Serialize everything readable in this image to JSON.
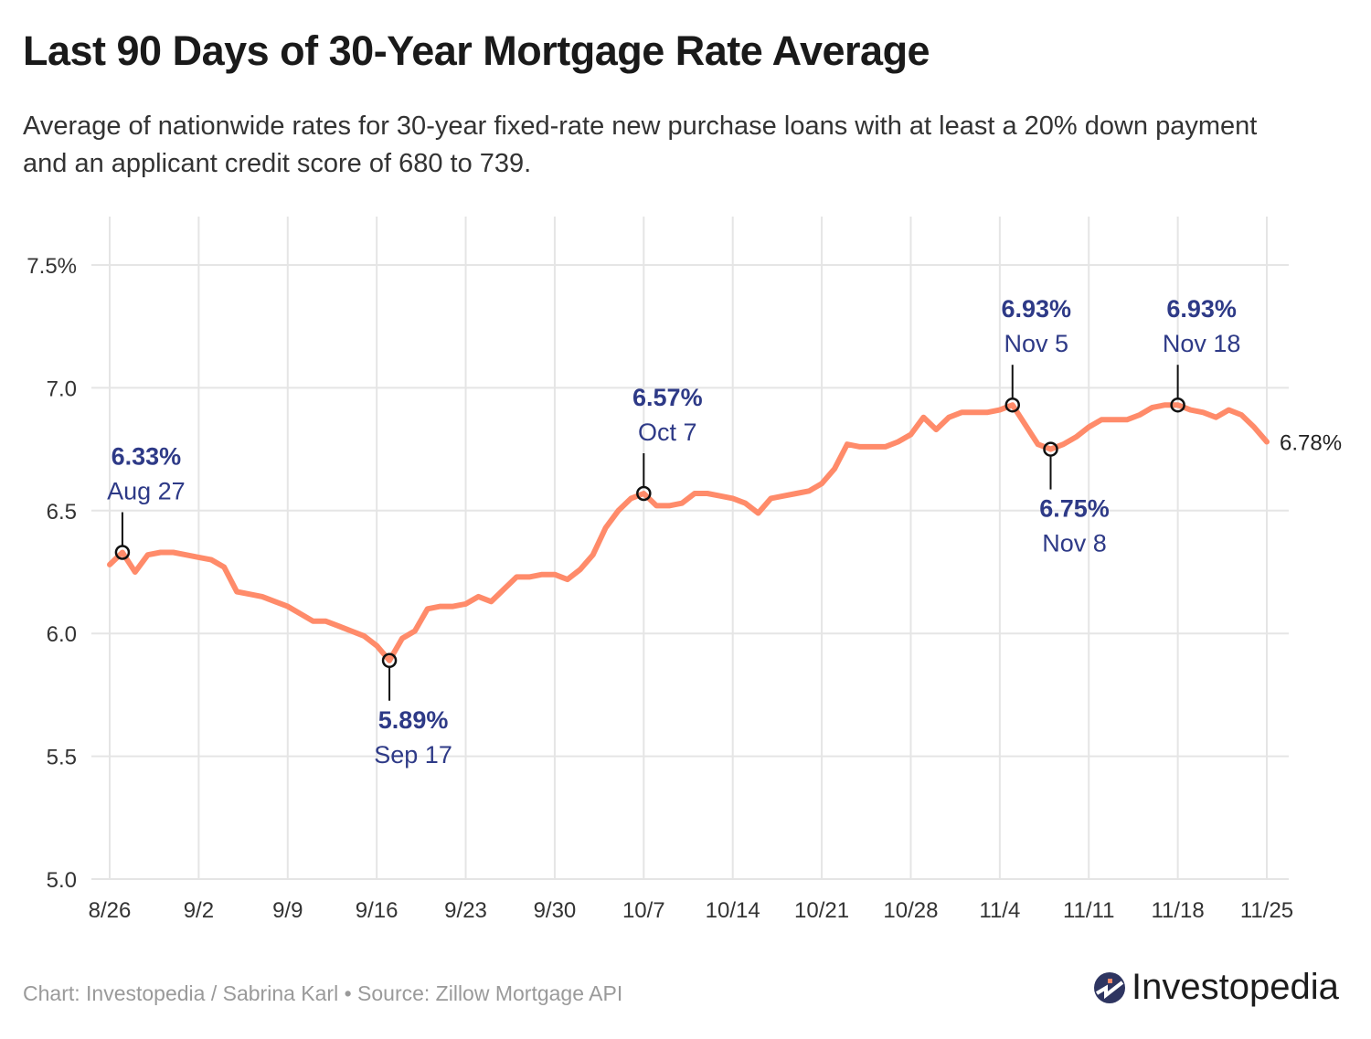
{
  "title": "Last 90 Days of 30-Year Mortgage Rate Average",
  "subtitle": "Average of nationwide rates for 30-year fixed-rate new purchase loans with at least a 20% down payment and an applicant credit score of 680 to 739.",
  "footer": "Chart: Investopedia / Sabrina Karl • Source: Zillow Mortgage API",
  "logo": {
    "text": "Investopedia"
  },
  "colors": {
    "line": "#FF8B6A",
    "annotation": "#2E3A87",
    "grid": "#E5E5E5",
    "logo_circle": "#2E3561",
    "logo_dot": "#FF8B6A"
  },
  "chart_data": {
    "type": "line",
    "title": "Last 90 Days of 30-Year Mortgage Rate Average",
    "xlabel": "",
    "ylabel": "",
    "ylim": [
      5.0,
      7.5
    ],
    "yticks": [
      5.0,
      5.5,
      6.0,
      6.5,
      7.0,
      7.5
    ],
    "ytick_labels": [
      "5.0",
      "5.5",
      "6.0",
      "6.5",
      "7.0",
      "7.5%"
    ],
    "xticks": [
      "8/26",
      "9/2",
      "9/9",
      "9/16",
      "9/23",
      "9/30",
      "10/7",
      "10/14",
      "10/21",
      "10/28",
      "11/4",
      "11/11",
      "11/18",
      "11/25"
    ],
    "grid": true,
    "x": [
      "8/26",
      "8/27",
      "8/28",
      "8/29",
      "8/30",
      "8/31",
      "9/1",
      "9/2",
      "9/3",
      "9/4",
      "9/5",
      "9/6",
      "9/7",
      "9/8",
      "9/9",
      "9/10",
      "9/11",
      "9/12",
      "9/13",
      "9/14",
      "9/15",
      "9/16",
      "9/17",
      "9/18",
      "9/19",
      "9/20",
      "9/21",
      "9/22",
      "9/23",
      "9/24",
      "9/25",
      "9/26",
      "9/27",
      "9/28",
      "9/29",
      "9/30",
      "10/1",
      "10/2",
      "10/3",
      "10/4",
      "10/5",
      "10/6",
      "10/7",
      "10/8",
      "10/9",
      "10/10",
      "10/11",
      "10/12",
      "10/13",
      "10/14",
      "10/15",
      "10/16",
      "10/17",
      "10/18",
      "10/19",
      "10/20",
      "10/21",
      "10/22",
      "10/23",
      "10/24",
      "10/25",
      "10/26",
      "10/27",
      "10/28",
      "10/29",
      "10/30",
      "10/31",
      "11/1",
      "11/2",
      "11/3",
      "11/4",
      "11/5",
      "11/6",
      "11/7",
      "11/8",
      "11/9",
      "11/10",
      "11/11",
      "11/12",
      "11/13",
      "11/14",
      "11/15",
      "11/16",
      "11/17",
      "11/18",
      "11/19",
      "11/20",
      "11/21",
      "11/22",
      "11/23",
      "11/24",
      "11/25"
    ],
    "values": [
      6.28,
      6.33,
      6.25,
      6.32,
      6.33,
      6.33,
      6.32,
      6.31,
      6.3,
      6.27,
      6.17,
      6.16,
      6.15,
      6.13,
      6.11,
      6.08,
      6.05,
      6.05,
      6.03,
      6.01,
      5.99,
      5.95,
      5.89,
      5.98,
      6.01,
      6.1,
      6.11,
      6.11,
      6.12,
      6.15,
      6.13,
      6.18,
      6.23,
      6.23,
      6.24,
      6.24,
      6.22,
      6.26,
      6.32,
      6.43,
      6.5,
      6.55,
      6.57,
      6.52,
      6.52,
      6.53,
      6.57,
      6.57,
      6.56,
      6.55,
      6.53,
      6.49,
      6.55,
      6.56,
      6.57,
      6.58,
      6.61,
      6.67,
      6.77,
      6.76,
      6.76,
      6.76,
      6.78,
      6.81,
      6.88,
      6.83,
      6.88,
      6.9,
      6.9,
      6.9,
      6.91,
      6.93,
      6.85,
      6.77,
      6.75,
      6.77,
      6.8,
      6.84,
      6.87,
      6.87,
      6.87,
      6.89,
      6.92,
      6.93,
      6.93,
      6.91,
      6.9,
      6.88,
      6.91,
      6.89,
      6.84,
      6.78
    ],
    "end_label": "6.78%",
    "annotations": [
      {
        "date": "8/27",
        "value_label": "6.33%",
        "date_label": "Aug 27",
        "position": "above"
      },
      {
        "date": "9/17",
        "value_label": "5.89%",
        "date_label": "Sep 17",
        "position": "below"
      },
      {
        "date": "10/7",
        "value_label": "6.57%",
        "date_label": "Oct 7",
        "position": "above"
      },
      {
        "date": "11/5",
        "value_label": "6.93%",
        "date_label": "Nov 5",
        "position": "above"
      },
      {
        "date": "11/8",
        "value_label": "6.75%",
        "date_label": "Nov 8",
        "position": "below"
      },
      {
        "date": "11/18",
        "value_label": "6.93%",
        "date_label": "Nov 18",
        "position": "above"
      }
    ]
  }
}
